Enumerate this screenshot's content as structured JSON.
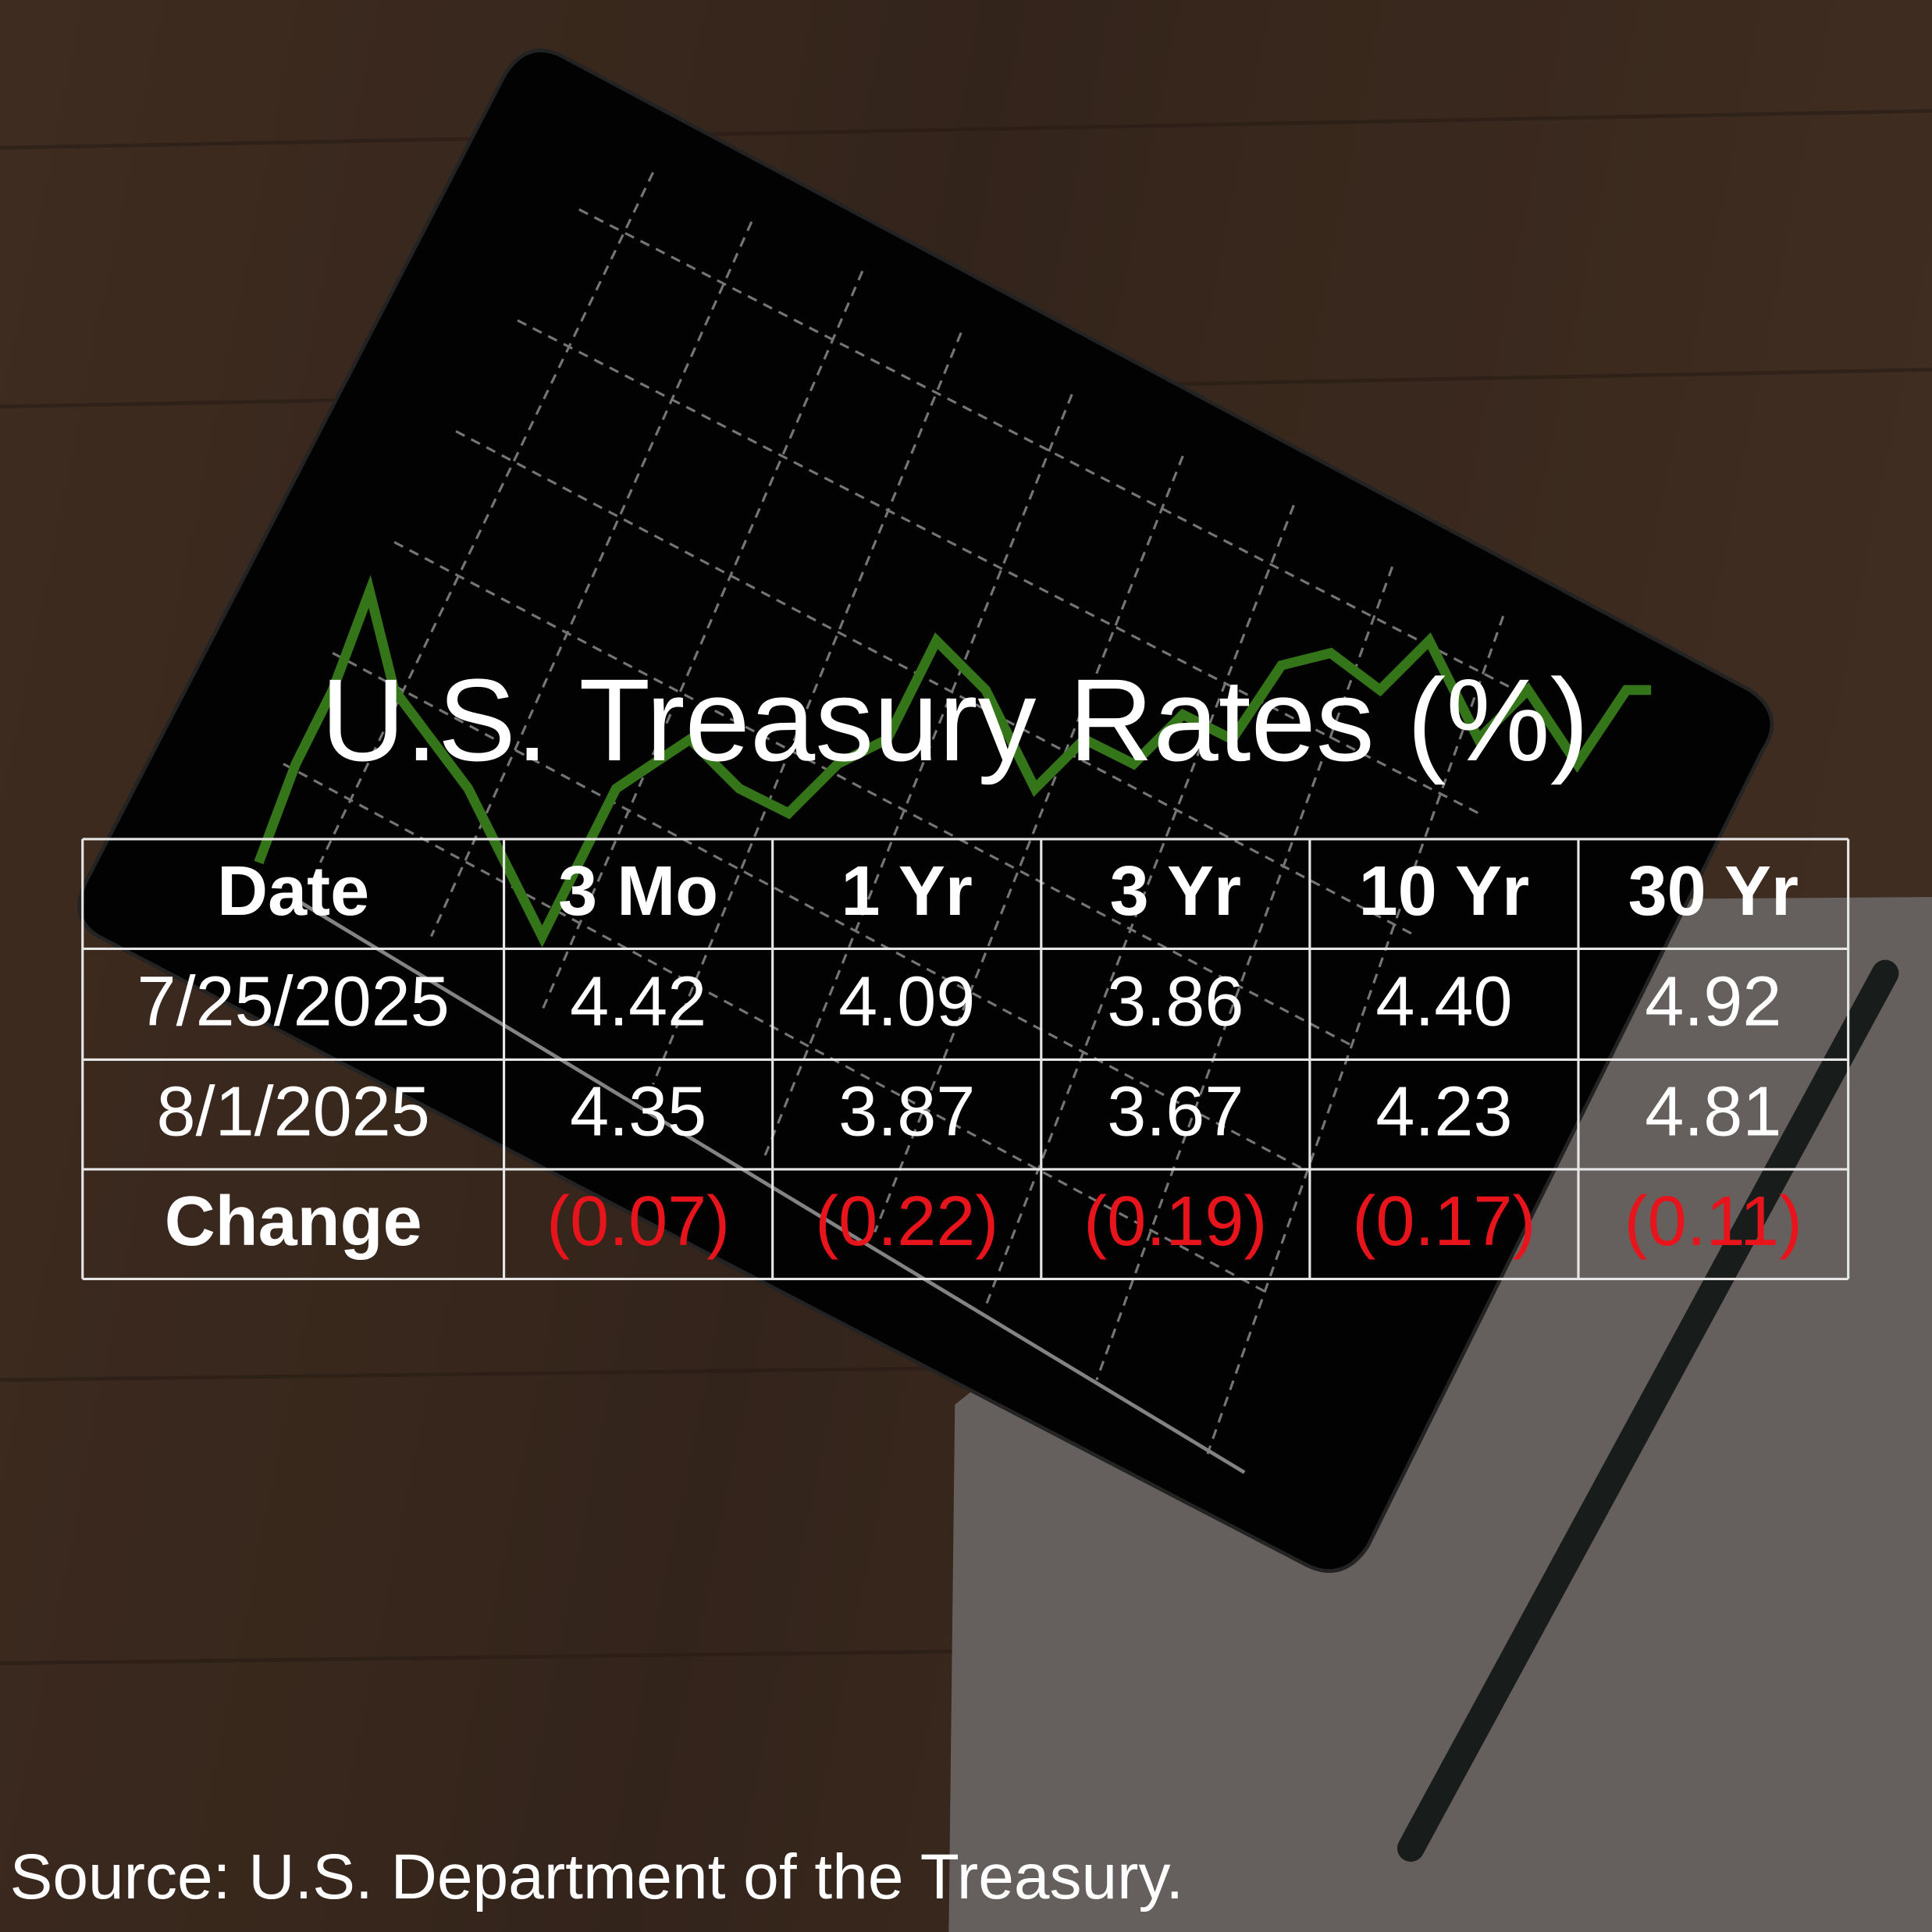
{
  "header": {
    "title": "U.S. Treasury Rates (%)"
  },
  "table": {
    "columns": [
      "Date",
      "3 Mo",
      "1 Yr",
      "3 Yr",
      "10 Yr",
      "30 Yr"
    ],
    "rows": [
      [
        "7/25/2025",
        "4.42",
        "4.09",
        "3.86",
        "4.40",
        "4.92"
      ],
      [
        "8/1/2025",
        "4.35",
        "3.87",
        "3.67",
        "4.23",
        "4.81"
      ],
      [
        "Change",
        "(0.07)",
        "(0.22)",
        "(0.19)",
        "(0.17)",
        "(0.11)"
      ]
    ]
  },
  "footer": {
    "source": "Source: U.S. Department of the Treasury."
  }
}
